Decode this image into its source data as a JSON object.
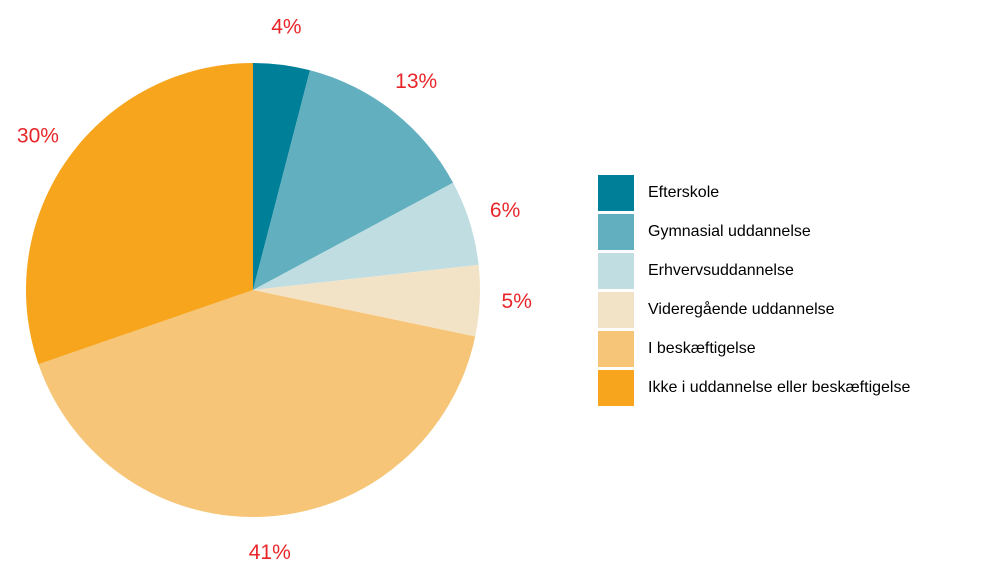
{
  "chart_data": {
    "type": "pie",
    "categories": [
      "Efterskole",
      "Gymnasial uddannelse",
      "Erhvervsuddannelse",
      "Videregående uddannelse",
      "I beskæftigelse",
      "Ikke i uddannelse eller beskæftigelse"
    ],
    "values": [
      4,
      13,
      6,
      5,
      41,
      30
    ],
    "value_labels": [
      "4%",
      "13%",
      "6%",
      "5%",
      "41%",
      "30%"
    ],
    "colors": [
      "#007f99",
      "#62afbf",
      "#c0dde2",
      "#f3e3c6",
      "#f6c577",
      "#f7a51c"
    ],
    "label_color": "#e8262a",
    "legend": "right"
  }
}
